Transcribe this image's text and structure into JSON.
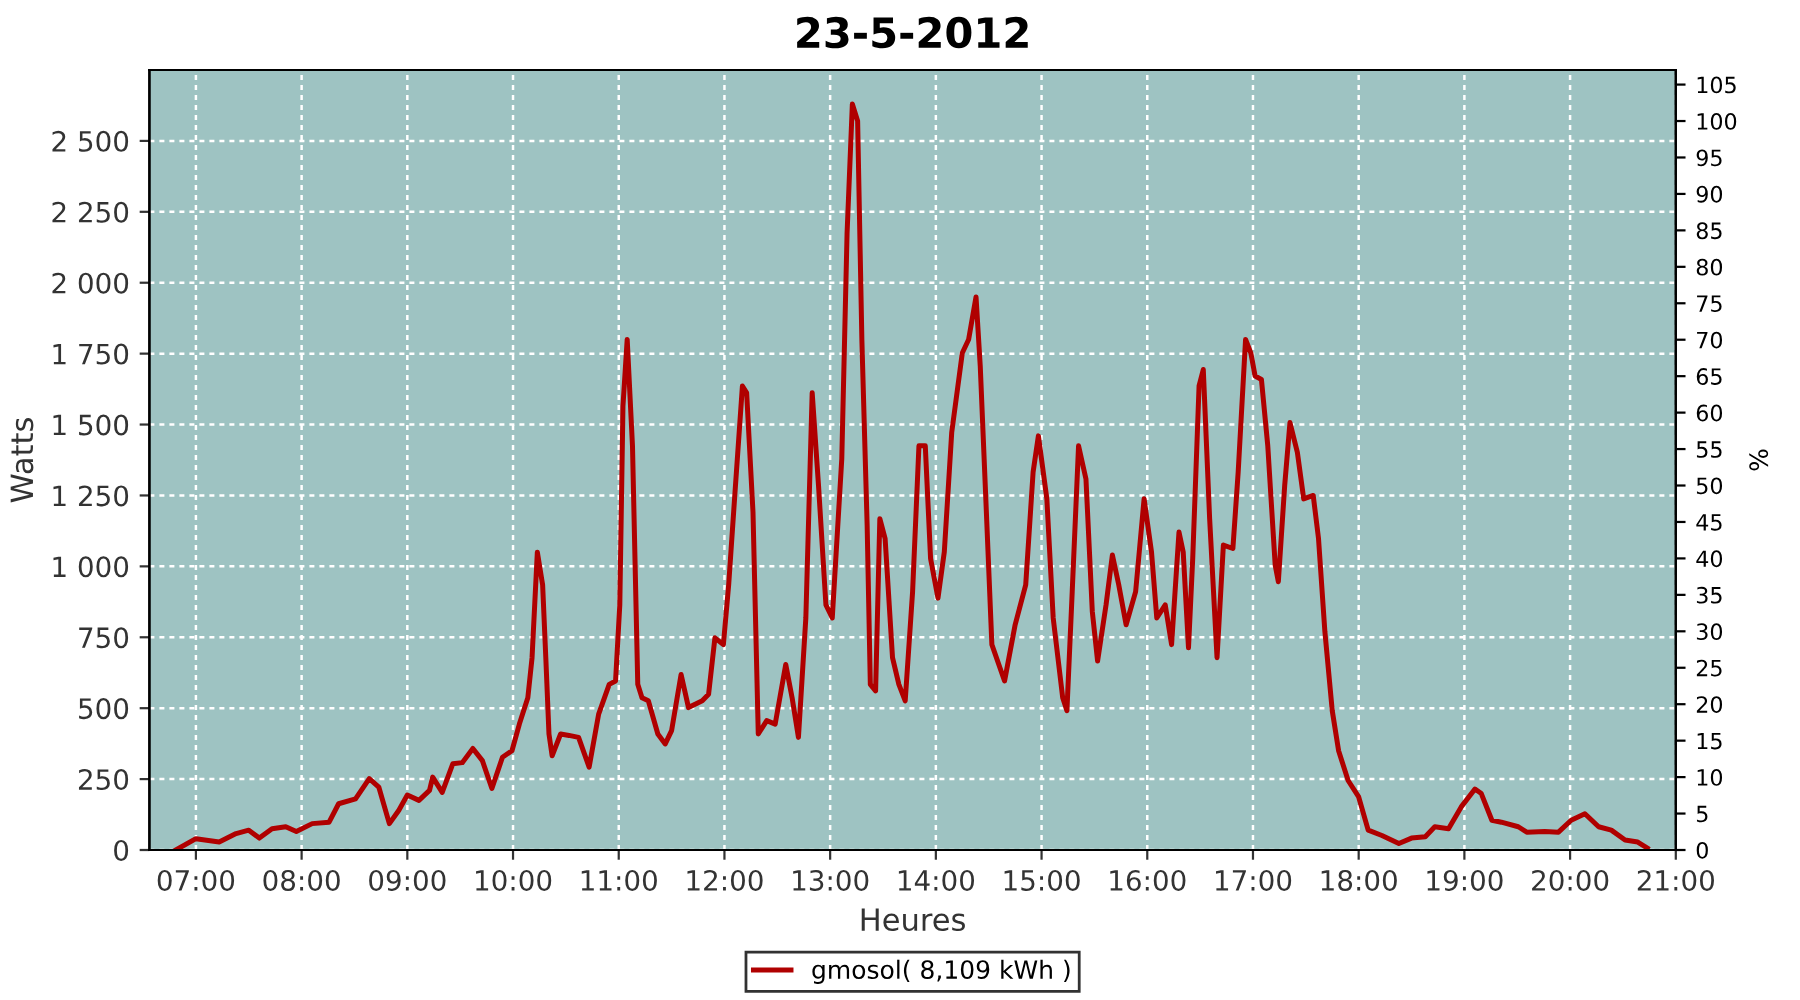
{
  "chart_data": {
    "type": "line",
    "title": "23-5-2012",
    "xlabel": "Heures",
    "ylabel": "Watts",
    "y2label": "%",
    "xlim": [
      6.56,
      21.0
    ],
    "xticks": [
      {
        "value": 7,
        "label": "07:00"
      },
      {
        "value": 8,
        "label": "08:00"
      },
      {
        "value": 9,
        "label": "09:00"
      },
      {
        "value": 10,
        "label": "10:00"
      },
      {
        "value": 11,
        "label": "11:00"
      },
      {
        "value": 12,
        "label": "12:00"
      },
      {
        "value": 13,
        "label": "13:00"
      },
      {
        "value": 14,
        "label": "14:00"
      },
      {
        "value": 15,
        "label": "15:00"
      },
      {
        "value": 16,
        "label": "16:00"
      },
      {
        "value": 17,
        "label": "17:00"
      },
      {
        "value": 18,
        "label": "18:00"
      },
      {
        "value": 19,
        "label": "19:00"
      },
      {
        "value": 20,
        "label": "20:00"
      },
      {
        "value": 21,
        "label": "21:00"
      }
    ],
    "ylim": [
      0,
      2750
    ],
    "yticks": [
      0,
      250,
      500,
      750,
      {
        "value": 1000,
        "label": "1 000"
      },
      {
        "value": 1250,
        "label": "1 250"
      },
      {
        "value": 1500,
        "label": "1 500"
      },
      {
        "value": 1750,
        "label": "1 750"
      },
      {
        "value": 2000,
        "label": "2 000"
      },
      {
        "value": 2250,
        "label": "2 250"
      },
      {
        "value": 2500,
        "label": "2 500"
      }
    ],
    "y2lim": [
      0,
      107
    ],
    "y2ticks": [
      0,
      5,
      10,
      15,
      20,
      25,
      30,
      35,
      40,
      45,
      50,
      55,
      60,
      65,
      70,
      75,
      80,
      85,
      90,
      95,
      100,
      105
    ],
    "grid": true,
    "legend": "bottom",
    "marker": "none",
    "line_style": "solid",
    "series": [
      {
        "name": "gmosol( 8,109 kWh )",
        "color": "#b00000",
        "x": [
          6.81,
          7.0,
          7.22,
          7.38,
          7.5,
          7.6,
          7.72,
          7.85,
          7.95,
          8.1,
          8.26,
          8.35,
          8.51,
          8.64,
          8.73,
          8.83,
          8.92,
          9.0,
          9.11,
          9.21,
          9.24,
          9.33,
          9.43,
          9.52,
          9.62,
          9.71,
          9.8,
          9.9,
          9.99,
          10.06,
          10.14,
          10.18,
          10.23,
          10.28,
          10.31,
          10.34,
          10.37,
          10.45,
          10.53,
          10.62,
          10.72,
          10.81,
          10.91,
          10.97,
          11.01,
          11.04,
          11.08,
          11.13,
          11.18,
          11.22,
          11.28,
          11.37,
          11.44,
          11.5,
          11.59,
          11.66,
          11.79,
          11.85,
          11.91,
          11.99,
          12.04,
          12.1,
          12.17,
          12.21,
          12.27,
          12.32,
          12.4,
          12.48,
          12.58,
          12.64,
          12.7,
          12.77,
          12.83,
          12.89,
          12.96,
          13.02,
          13.11,
          13.16,
          13.21,
          13.26,
          13.3,
          13.35,
          13.38,
          13.43,
          13.47,
          13.52,
          13.59,
          13.65,
          13.71,
          13.78,
          13.84,
          13.9,
          13.95,
          14.02,
          14.08,
          14.15,
          14.25,
          14.31,
          14.38,
          14.42,
          14.47,
          14.53,
          14.65,
          14.75,
          14.85,
          14.92,
          14.97,
          15.05,
          15.11,
          15.2,
          15.24,
          15.29,
          15.35,
          15.42,
          15.48,
          15.53,
          15.61,
          15.67,
          15.73,
          15.8,
          15.89,
          15.97,
          16.04,
          16.09,
          16.17,
          16.23,
          16.3,
          16.34,
          16.39,
          16.43,
          16.49,
          16.53,
          16.59,
          16.66,
          16.72,
          16.81,
          16.86,
          16.93,
          16.98,
          17.02,
          17.08,
          17.14,
          17.21,
          17.24,
          17.3,
          17.35,
          17.42,
          17.48,
          17.57,
          17.62,
          17.68,
          17.75,
          17.81,
          17.9,
          18.0,
          18.09,
          18.22,
          18.38,
          18.5,
          18.63,
          18.72,
          18.85,
          18.97,
          19.1,
          19.16,
          19.26,
          19.35,
          19.51,
          19.59,
          19.76,
          19.89,
          20.01,
          20.14,
          20.27,
          20.39,
          20.52,
          20.64,
          20.73
        ],
        "values": [
          0,
          40,
          28,
          58,
          70,
          42,
          75,
          82,
          65,
          93,
          98,
          163,
          180,
          252,
          222,
          93,
          140,
          194,
          175,
          210,
          257,
          203,
          304,
          308,
          358,
          315,
          217,
          327,
          350,
          444,
          537,
          678,
          1050,
          935,
          678,
          409,
          332,
          409,
          404,
          397,
          292,
          479,
          584,
          596,
          864,
          1565,
          1800,
          1425,
          584,
          537,
          526,
          409,
          374,
          421,
          619,
          502,
          526,
          549,
          748,
          724,
          935,
          1262,
          1636,
          1612,
          1192,
          409,
          456,
          444,
          654,
          537,
          397,
          818,
          1612,
          1285,
          864,
          818,
          1379,
          2173,
          2630,
          2570,
          1800,
          1145,
          584,
          561,
          1168,
          1098,
          678,
          584,
          526,
          911,
          1425,
          1425,
          1028,
          888,
          1051,
          1472,
          1752,
          1800,
          1950,
          1706,
          1262,
          724,
          596,
          794,
          935,
          1332,
          1460,
          1238,
          818,
          537,
          491,
          911,
          1425,
          1308,
          841,
          666,
          864,
          1040,
          935,
          794,
          911,
          1238,
          1051,
          818,
          864,
          724,
          1121,
          1051,
          713,
          1028,
          1636,
          1694,
          1168,
          678,
          1075,
          1063,
          1332,
          1800,
          1752,
          1671,
          1659,
          1425,
          1005,
          946,
          1285,
          1507,
          1402,
          1238,
          1250,
          1098,
          771,
          491,
          350,
          245,
          187,
          70,
          51,
          23,
          42,
          47,
          82,
          75,
          152,
          215,
          199,
          105,
          98,
          82,
          63,
          65,
          63,
          105,
          128,
          82,
          70,
          35,
          28,
          7
        ]
      }
    ]
  }
}
